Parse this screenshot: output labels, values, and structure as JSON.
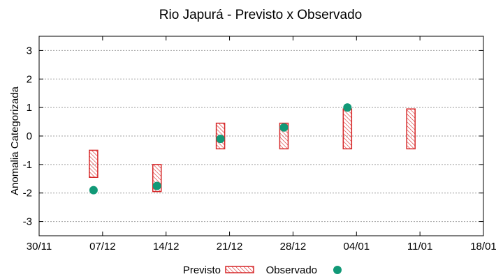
{
  "chart_data": {
    "type": "floating-bar-scatter",
    "title": "Rio Japurá - Previsto x Observado",
    "ylabel": "Anomalia Categorizada",
    "xlabel": "",
    "ylim": [
      -3.5,
      3.5
    ],
    "yticks": [
      -3,
      -2,
      -1,
      0,
      1,
      2,
      3
    ],
    "ytick_labels": [
      "-3",
      "-2",
      "-1",
      "0",
      "1",
      "2",
      "3"
    ],
    "xlim": [
      0,
      49
    ],
    "xticks": [
      0,
      7,
      14,
      21,
      28,
      35,
      42,
      49
    ],
    "xtick_labels": [
      "30/11",
      "07/12",
      "14/12",
      "21/12",
      "28/12",
      "04/01",
      "11/01",
      "18/01"
    ],
    "grid": true,
    "series": [
      {
        "name": "Previsto",
        "kind": "range-bar",
        "color": "#d62728",
        "x": [
          6,
          13,
          20,
          27,
          34,
          41
        ],
        "low": [
          -1.45,
          -1.95,
          -0.45,
          -0.45,
          -0.45,
          -0.45
        ],
        "high": [
          -0.5,
          -1.0,
          0.45,
          0.45,
          0.95,
          0.95
        ]
      },
      {
        "name": "Observado",
        "kind": "point",
        "color": "#119977",
        "x": [
          6,
          13,
          20,
          27,
          34
        ],
        "y": [
          -1.9,
          -1.75,
          -0.1,
          0.3,
          1.0
        ]
      }
    ],
    "legend": {
      "position": "bottom",
      "entries": [
        "Previsto",
        "Observado"
      ]
    }
  }
}
